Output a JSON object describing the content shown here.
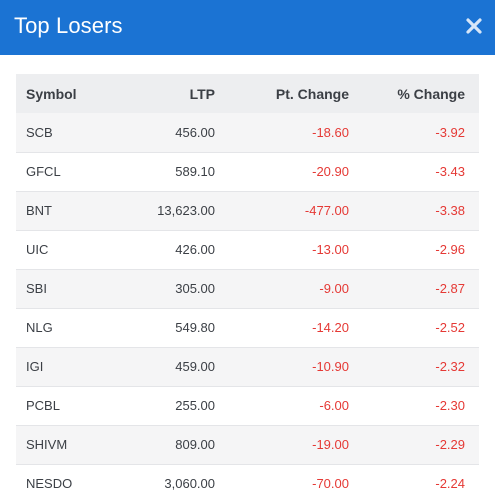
{
  "modal": {
    "title": "Top Losers",
    "close_icon": "close-icon",
    "accent_color": "#1b73d3",
    "negative_color": "#e53935"
  },
  "table": {
    "headers": {
      "symbol": "Symbol",
      "ltp": "LTP",
      "pt_change": "Pt. Change",
      "pct_change": "% Change"
    },
    "rows": [
      {
        "symbol": "SCB",
        "ltp": "456.00",
        "pt_change": "-18.60",
        "pct_change": "-3.92"
      },
      {
        "symbol": "GFCL",
        "ltp": "589.10",
        "pt_change": "-20.90",
        "pct_change": "-3.43"
      },
      {
        "symbol": "BNT",
        "ltp": "13,623.00",
        "pt_change": "-477.00",
        "pct_change": "-3.38"
      },
      {
        "symbol": "UIC",
        "ltp": "426.00",
        "pt_change": "-13.00",
        "pct_change": "-2.96"
      },
      {
        "symbol": "SBI",
        "ltp": "305.00",
        "pt_change": "-9.00",
        "pct_change": "-2.87"
      },
      {
        "symbol": "NLG",
        "ltp": "549.80",
        "pt_change": "-14.20",
        "pct_change": "-2.52"
      },
      {
        "symbol": "IGI",
        "ltp": "459.00",
        "pt_change": "-10.90",
        "pct_change": "-2.32"
      },
      {
        "symbol": "PCBL",
        "ltp": "255.00",
        "pt_change": "-6.00",
        "pct_change": "-2.30"
      },
      {
        "symbol": "SHIVM",
        "ltp": "809.00",
        "pt_change": "-19.00",
        "pct_change": "-2.29"
      },
      {
        "symbol": "NESDO",
        "ltp": "3,060.00",
        "pt_change": "-70.00",
        "pct_change": "-2.24"
      }
    ]
  }
}
